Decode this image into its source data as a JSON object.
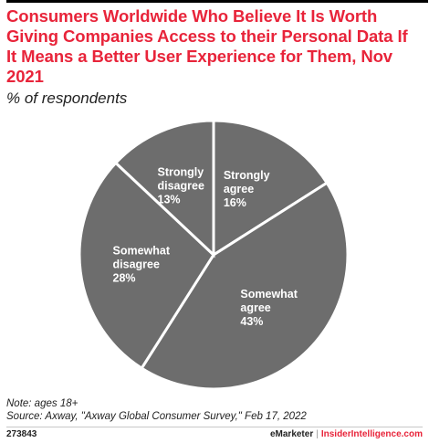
{
  "title": "Consumers Worldwide Who Believe It Is Worth Giving Companies Access to their Personal Data If It Means a Better User Experience for Them, Nov 2021",
  "subtitle": "% of respondents",
  "colors": {
    "title": "#e8243a",
    "slice": "#6d6d6d",
    "slice_border": "#ffffff"
  },
  "chart_data": {
    "type": "pie",
    "slices": [
      {
        "label": "Strongly agree",
        "value": 16,
        "display": "16%"
      },
      {
        "label": "Somewhat agree",
        "value": 43,
        "display": "43%"
      },
      {
        "label": "Somewhat disagree",
        "value": 28,
        "display": "28%"
      },
      {
        "label": "Strongly disagree",
        "value": 13,
        "display": "13%"
      }
    ]
  },
  "notes": {
    "note": "Note: ages 18+",
    "source": "Source: Axway, \"Axway Global Consumer Survey,\" Feb 17, 2022"
  },
  "footer": {
    "chart_id": "273843",
    "brand_left": "eMarketer",
    "separator": "|",
    "brand_right": "InsiderIntelligence.com"
  }
}
